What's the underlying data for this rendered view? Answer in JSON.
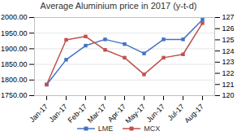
{
  "chart_data": {
    "type": "line",
    "title": "Average Aluminium price in 2017 (y-t-d)",
    "categories": [
      "Jan-17",
      "Jan-17",
      "Feb-17",
      "Mar-17",
      "Apr-17",
      "May-17",
      "Jun-17",
      "Jul-17",
      "Aug-17"
    ],
    "series": [
      {
        "name": "LME",
        "color": "#4472C4",
        "marker": "square",
        "values": [
          1785,
          1865,
          1910,
          1930,
          1915,
          1885,
          1930,
          1930,
          1993
        ]
      },
      {
        "name": "MCX",
        "color": "#C0504D",
        "marker": "square",
        "axis": "y2",
        "values": [
          121.0,
          125.0,
          125.3,
          124.1,
          123.4,
          121.9,
          123.4,
          123.7,
          126.5
        ]
      }
    ],
    "ylim": [
      1750,
      2000
    ],
    "yticks": [
      {
        "value": 1750,
        "label": "1750.00"
      },
      {
        "value": 1800,
        "label": "1800.00"
      },
      {
        "value": 1850,
        "label": "1850.00"
      },
      {
        "value": 1900,
        "label": "1900.00"
      },
      {
        "value": 1950,
        "label": "1950.00"
      },
      {
        "value": 2000,
        "label": "2000.00"
      }
    ],
    "y2lim": [
      120,
      127
    ],
    "y2ticks": [
      120,
      121,
      122,
      123,
      124,
      125,
      126,
      127
    ],
    "grid": true,
    "legend": "bottom"
  }
}
